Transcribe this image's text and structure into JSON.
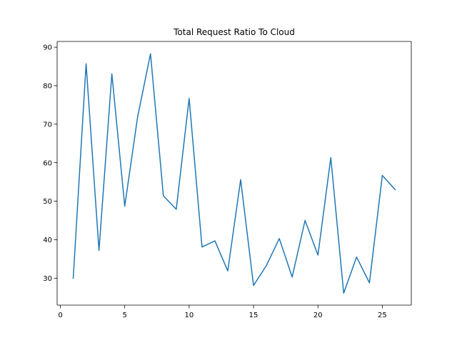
{
  "chart_data": {
    "type": "line",
    "title": "Total Request Ratio To Cloud",
    "xlabel": "",
    "ylabel": "",
    "xlim": [
      -0.25,
      27.25
    ],
    "ylim": [
      23.0,
      91.5
    ],
    "xticks": [
      0,
      5,
      10,
      15,
      20,
      25
    ],
    "yticks": [
      30,
      40,
      50,
      60,
      70,
      80,
      90
    ],
    "grid": false,
    "series": [
      {
        "color": "#1f77b4",
        "x": [
          1,
          2,
          3,
          4,
          5,
          6,
          7,
          8,
          9,
          10,
          11,
          12,
          13,
          14,
          15,
          16,
          17,
          18,
          19,
          20,
          21,
          22,
          23,
          24,
          25,
          26
        ],
        "y": [
          30.0,
          85.7,
          37.2,
          83.1,
          48.7,
          71.9,
          88.3,
          51.4,
          47.9,
          76.7,
          38.1,
          39.7,
          31.9,
          55.6,
          28.1,
          33.3,
          40.3,
          30.3,
          45.0,
          36.0,
          61.3,
          26.1,
          35.5,
          28.8,
          56.7,
          53.0
        ]
      }
    ]
  }
}
